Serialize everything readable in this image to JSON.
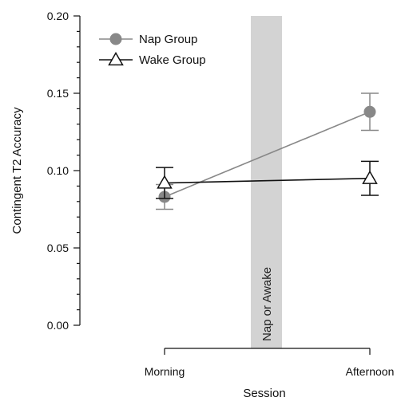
{
  "chart_data": {
    "type": "line",
    "title": "",
    "xlabel": "Session",
    "ylabel": "Contingent T2 Accuracy",
    "categories": [
      "Morning",
      "Afternoon"
    ],
    "ylim": [
      0.0,
      0.2
    ],
    "yticks": [
      "0.00",
      "0.05",
      "0.10",
      "0.15",
      "0.20"
    ],
    "grid": false,
    "legend_position": "top-left",
    "band": {
      "label": "Nap or Awake",
      "between": [
        "Morning",
        "Afternoon"
      ],
      "color": "#d3d3d3"
    },
    "series": [
      {
        "name": "Nap Group",
        "marker": "circle",
        "color": "#888888",
        "values": [
          0.083,
          0.138
        ],
        "error": [
          0.008,
          0.012
        ]
      },
      {
        "name": "Wake Group",
        "marker": "triangle",
        "color": "#111111",
        "values": [
          0.092,
          0.095
        ],
        "error": [
          0.01,
          0.011
        ]
      }
    ]
  }
}
